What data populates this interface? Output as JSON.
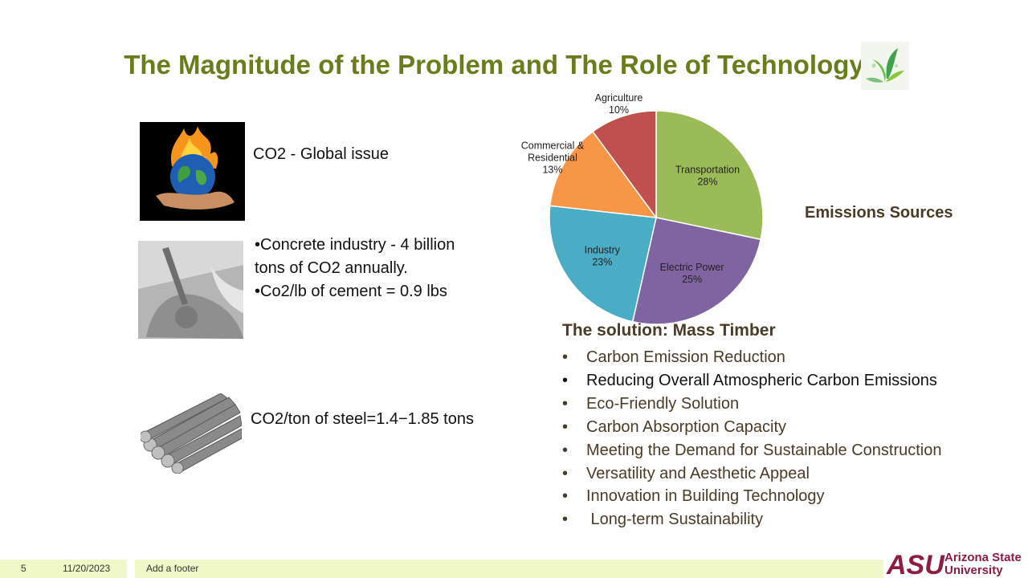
{
  "slide": {
    "title": "The Magnitude of the Problem and The Role of Technology",
    "co2_global": "CO2 - Global issue",
    "concrete_lines": [
      "•Concrete industry - 4 billion tons of CO2 annually.",
      "•Co2/lb of cement = 0.9 lbs"
    ],
    "steel_text": "CO2/ton of steel=1.4−1.85 tons",
    "emissions_label": "Emissions Sources",
    "solution_heading": "The solution: Mass Timber",
    "solution_items": [
      "Carbon Emission Reduction",
      "Reducing Overall Atmospheric Carbon Emissions",
      "Eco-Friendly Solution",
      "Carbon Absorption Capacity",
      "Meeting the Demand for Sustainable Construction",
      "Versatility and Aesthetic Appeal",
      "Innovation in Building Technology",
      " Long-term Sustainability"
    ],
    "bullet": "•"
  },
  "chart_data": {
    "type": "pie",
    "title": "Emissions Sources",
    "categories": [
      "Transportation",
      "Electric Power",
      "Industry",
      "Commercial & Residential",
      "Agriculture"
    ],
    "label_lines": [
      [
        "Transportation"
      ],
      [
        "Electric Power"
      ],
      [
        "Industry"
      ],
      [
        "Commercial &",
        "Residential"
      ],
      [
        "Agriculture"
      ]
    ],
    "values": [
      28,
      25,
      23,
      13,
      10
    ],
    "value_labels": [
      "28%",
      "25%",
      "23%",
      "13%",
      "10%"
    ],
    "colors": [
      "#9bbb59",
      "#8064a2",
      "#4bacc6",
      "#f79646",
      "#c0504d"
    ]
  },
  "footer": {
    "slide_number": "5",
    "date": "11/20/2023",
    "text": "Add a footer"
  },
  "logo": {
    "wordmark": "ASU",
    "name_line1": "Arizona State",
    "name_line2": "University",
    "color": "#8c1d40"
  }
}
